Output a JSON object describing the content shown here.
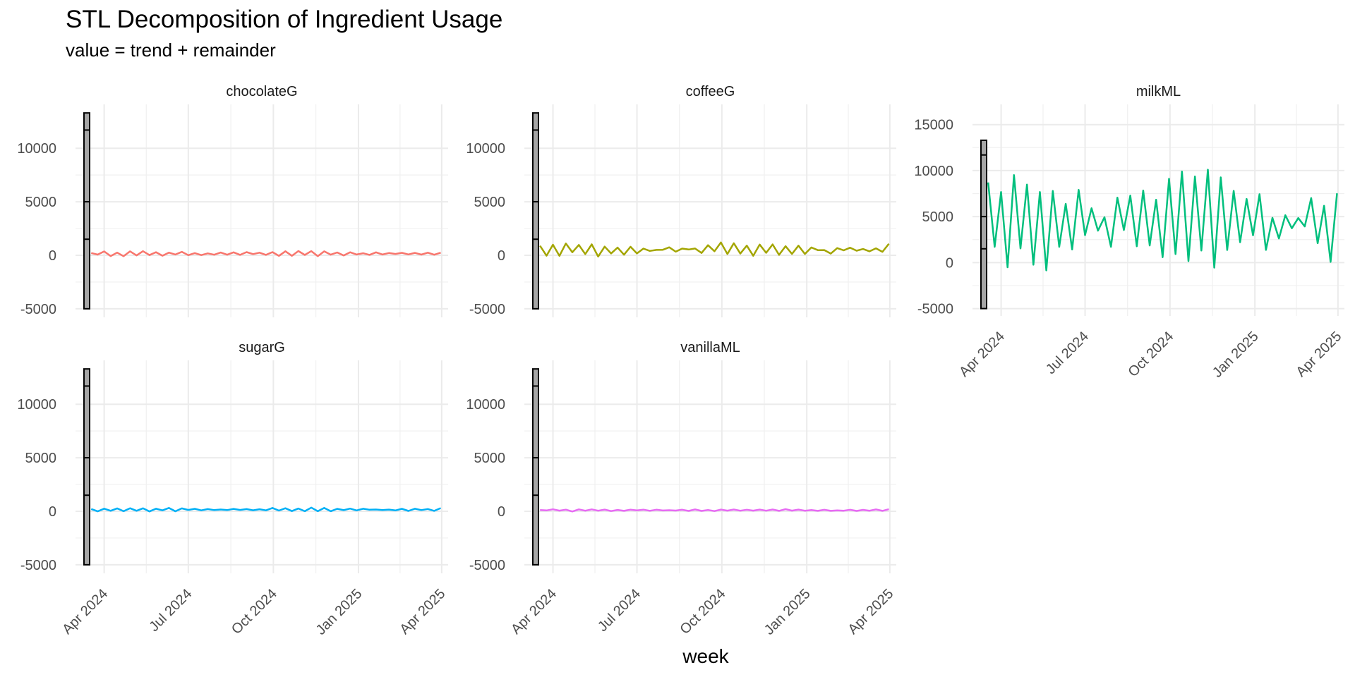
{
  "chart_data": {
    "type": "line",
    "title": "STL Decomposition of Ingredient Usage",
    "subtitle": "value = trend + remainder",
    "xlabel": "week",
    "ylabel": "",
    "x_range": [
      "2024-03-01",
      "2025-04-08"
    ],
    "x_ticks": [
      {
        "date": "2024-04-01",
        "label": "Apr 2024"
      },
      {
        "date": "2024-07-01",
        "label": "Jul 2024"
      },
      {
        "date": "2024-10-01",
        "label": "Oct 2024"
      },
      {
        "date": "2025-01-01",
        "label": "Jan 2025"
      },
      {
        "date": "2025-04-01",
        "label": "Apr 2025"
      }
    ],
    "shared_ylim": [
      -5800,
      14100
    ],
    "shared_y_ticks": [
      -5000,
      0,
      5000,
      10000
    ],
    "milk_ylim": [
      -5800,
      17200
    ],
    "milk_y_ticks": [
      -5000,
      0,
      5000,
      10000,
      15000
    ],
    "grid": true,
    "legend": "none",
    "range_bar": {
      "min": -5000,
      "q1": 1500,
      "median": 5000,
      "q3": 11700,
      "max": 13300
    },
    "range_bar_milk": {
      "min": -5000,
      "q1": 1500,
      "median": 5000,
      "q3": 11700,
      "max": 13300
    },
    "series": [
      {
        "name": "chocolateG",
        "color": "#F8766D",
        "base": 150,
        "amp": 180,
        "noise": 70
      },
      {
        "name": "coffeeG",
        "color": "#A3A500",
        "base": 550,
        "amp": 500,
        "noise": 250
      },
      {
        "name": "milkML",
        "color": "#00BF7D",
        "base": 4500,
        "amp": 4500,
        "noise": 1500
      },
      {
        "name": "sugarG",
        "color": "#00B0F6",
        "base": 150,
        "amp": 150,
        "noise": 60
      },
      {
        "name": "vanillaML",
        "color": "#E76BF3",
        "base": 100,
        "amp": 80,
        "noise": 40
      }
    ]
  }
}
